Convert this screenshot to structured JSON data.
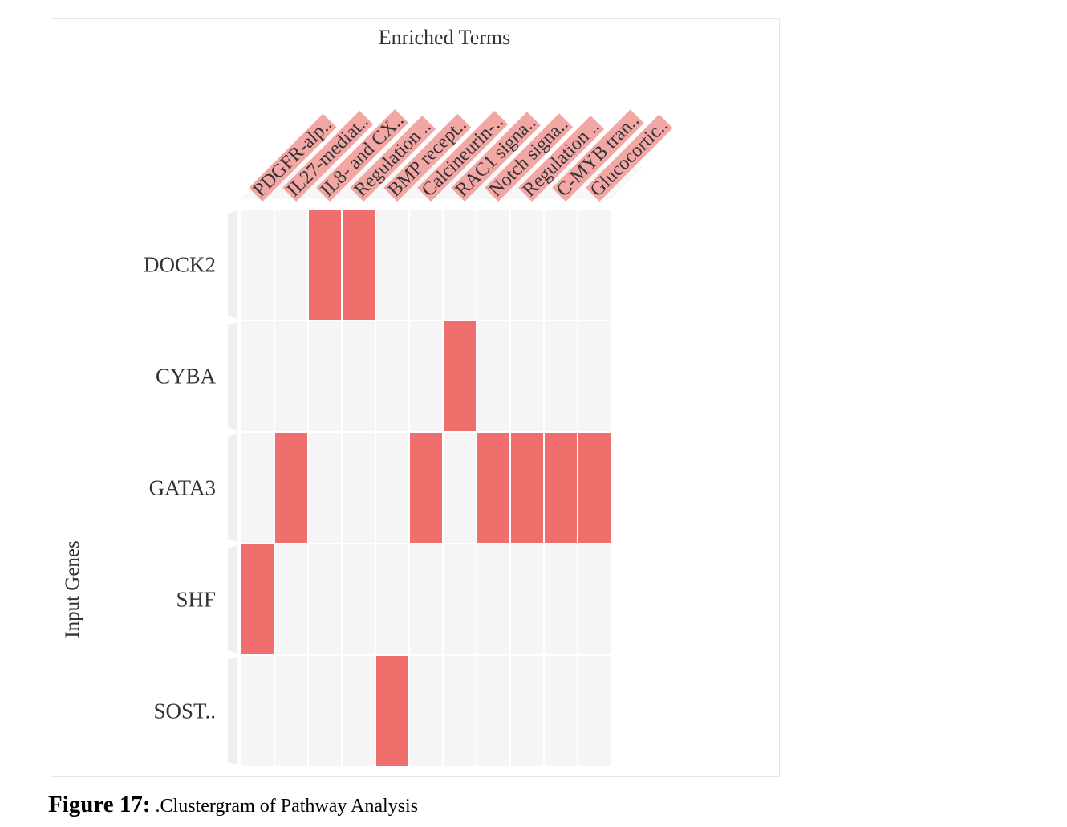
{
  "chart_data": {
    "type": "heatmap",
    "title": "Enriched Terms",
    "ylabel": "Input Genes",
    "xlabel": "",
    "columns": [
      "PDGFR-alp..",
      "IL27-mediat..",
      "IL8- and CX..",
      "Regulation ..",
      "BMP recept..",
      "Calcineurin-..",
      "RAC1 signa..",
      "Notch signa..",
      "Regulation ..",
      "C-MYB tran..",
      "Glucocortic.."
    ],
    "rows": [
      "DOCK2",
      "CYBA",
      "GATA3",
      "SHF",
      "SOST.."
    ],
    "matrix": [
      [
        0,
        0,
        1,
        1,
        0,
        0,
        0,
        0,
        0,
        0,
        0
      ],
      [
        0,
        0,
        0,
        0,
        0,
        0,
        1,
        0,
        0,
        0,
        0
      ],
      [
        0,
        1,
        0,
        0,
        0,
        1,
        0,
        1,
        1,
        1,
        1
      ],
      [
        1,
        0,
        0,
        0,
        0,
        0,
        0,
        0,
        0,
        0,
        0
      ],
      [
        0,
        0,
        0,
        0,
        1,
        0,
        0,
        0,
        0,
        0,
        0
      ]
    ],
    "colors": {
      "on": "#ee6f6b",
      "off": "#f5f5f5",
      "label_highlight": "#f3a7a4",
      "column_bar": "#efefef"
    },
    "grid": false,
    "legend": "none"
  },
  "caption": {
    "lead": "Figure 17:",
    "text": ".Clustergram of Pathway Analysis"
  }
}
